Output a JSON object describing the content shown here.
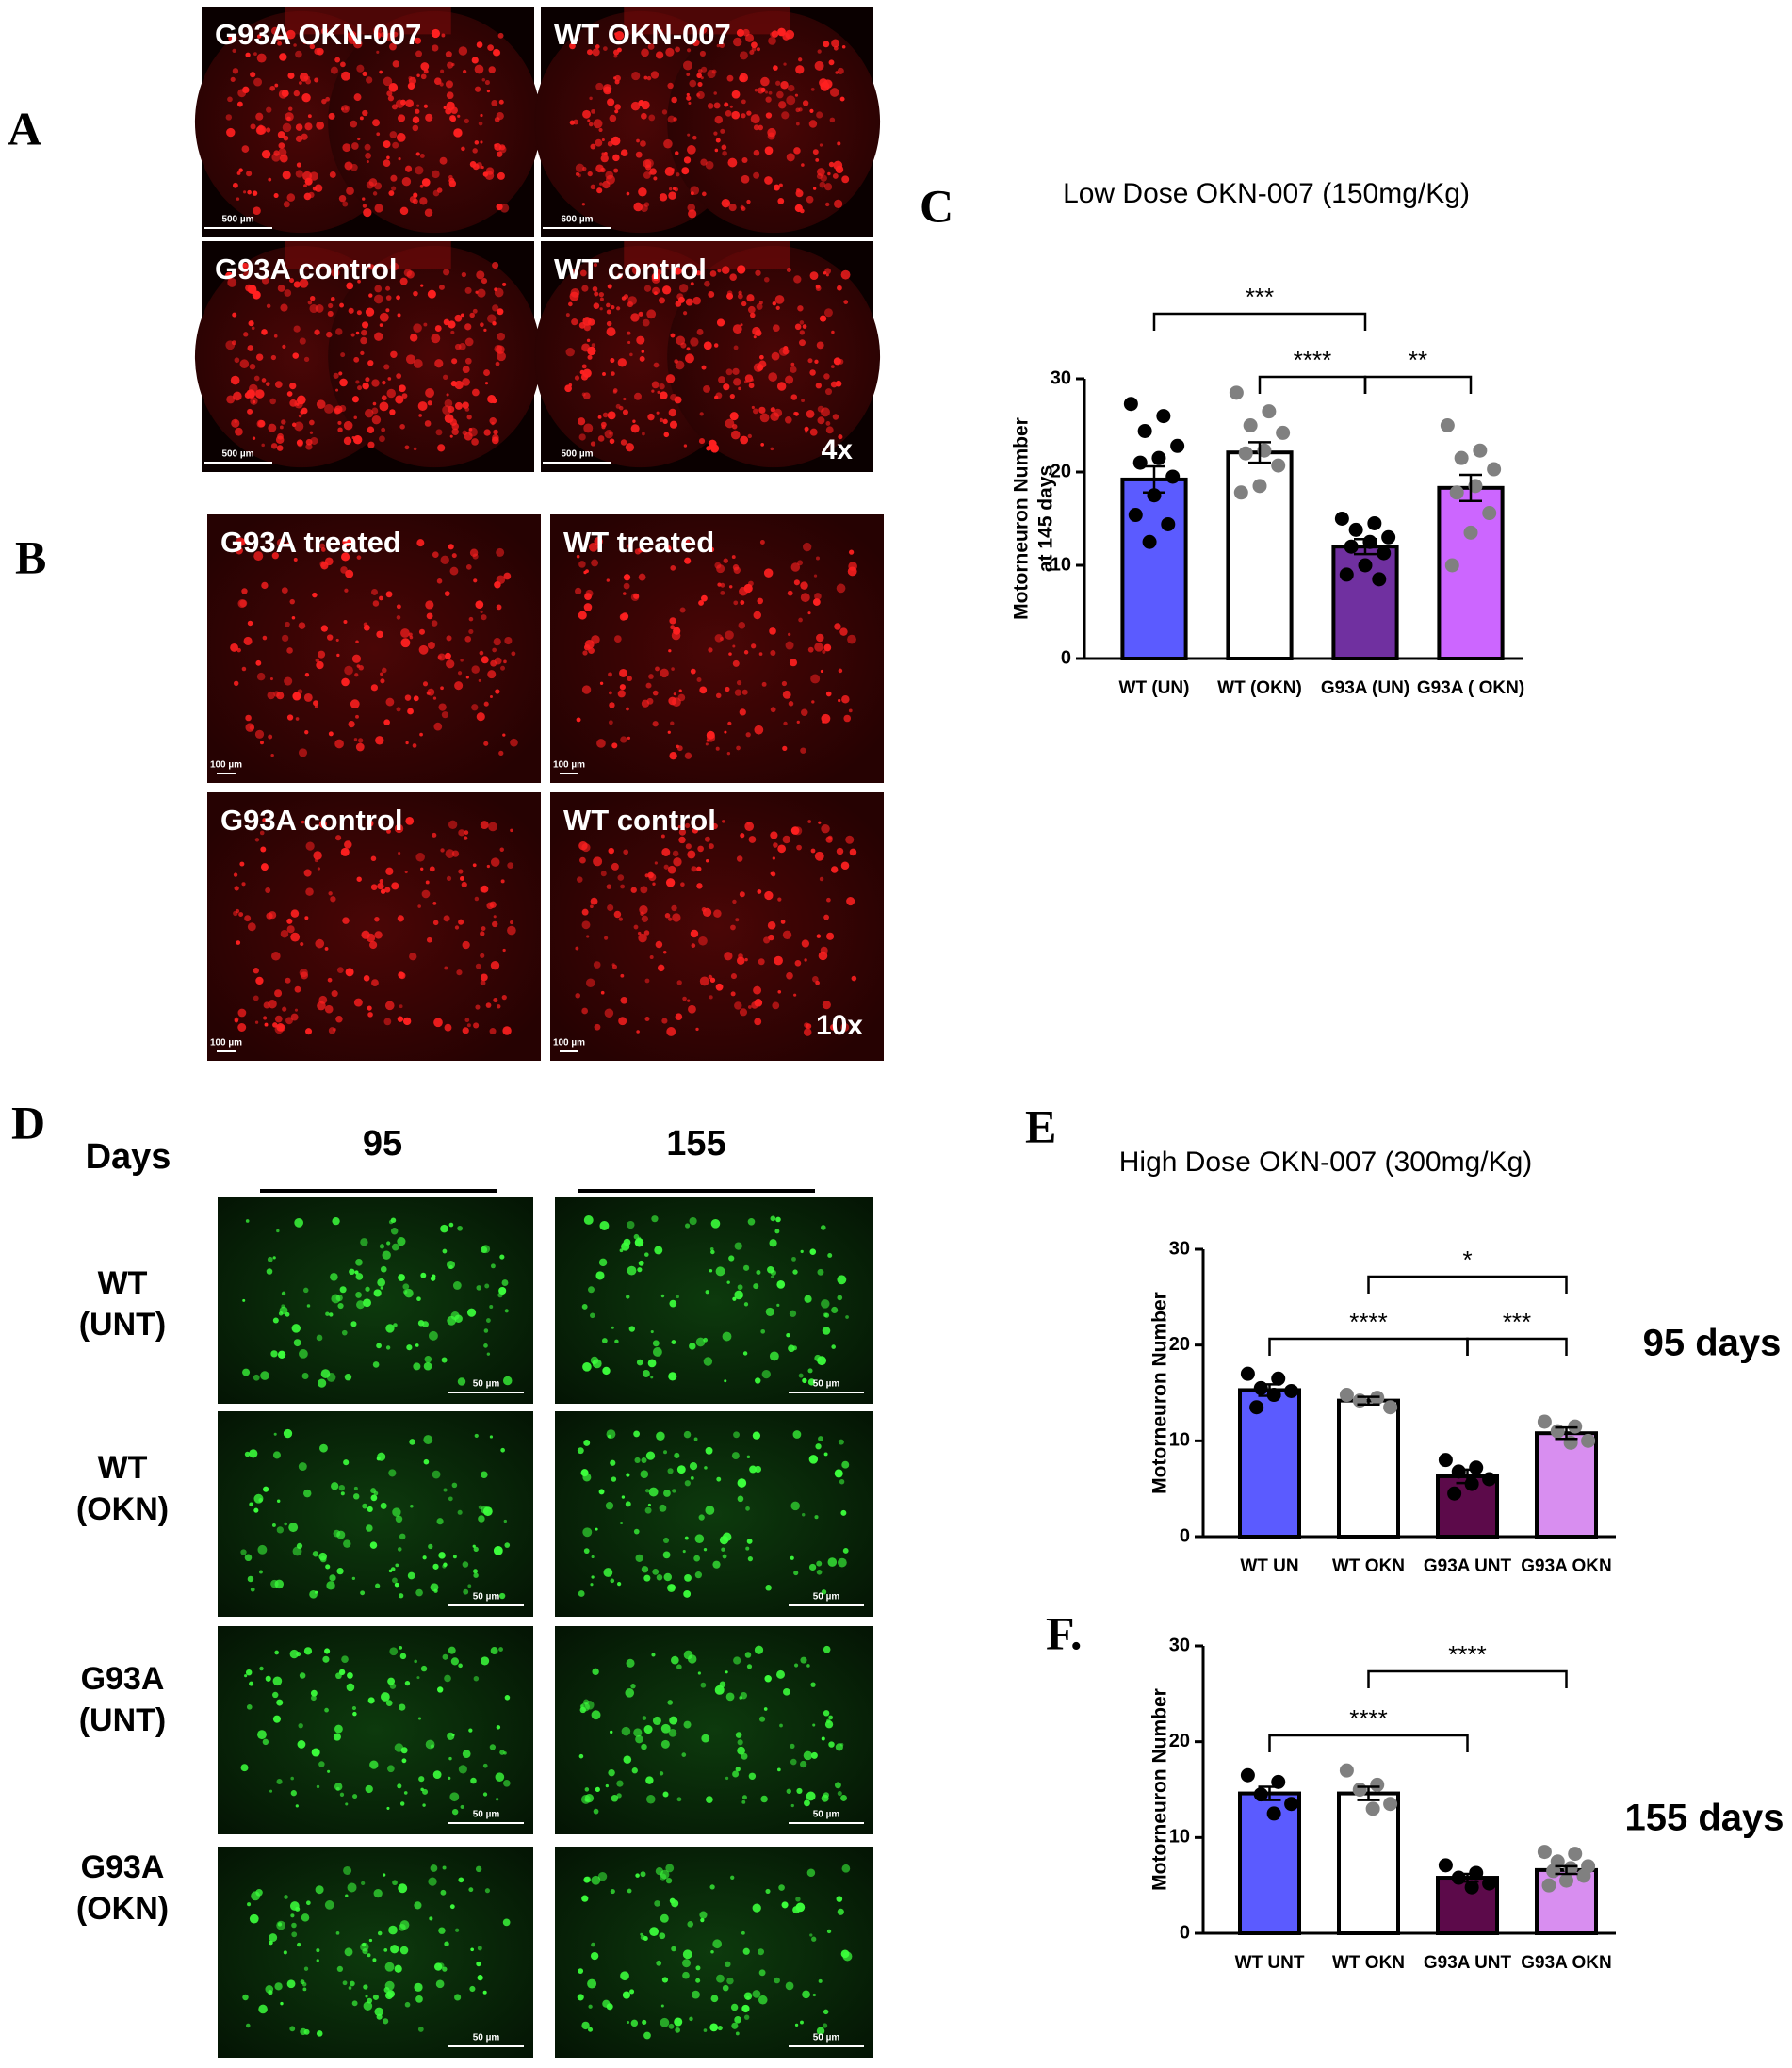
{
  "panel_a": {
    "letter": "A",
    "magnification": "4x",
    "images": [
      {
        "label": "G93A OKN-007",
        "scale": "500 µm"
      },
      {
        "label": "WT OKN-007",
        "scale": "600 µm"
      },
      {
        "label": "G93A control",
        "scale": "500 µm"
      },
      {
        "label": "WT control",
        "scale": "500 µm"
      }
    ]
  },
  "panel_b": {
    "letter": "B",
    "magnification": "10x",
    "images": [
      {
        "label": "G93A treated",
        "scale": "100 µm"
      },
      {
        "label": "WT treated",
        "scale": "100 µm"
      },
      {
        "label": "G93A control",
        "scale": "100 µm"
      },
      {
        "label": "WT control",
        "scale": "100 µm"
      }
    ]
  },
  "panel_d": {
    "letter": "D",
    "days_label": "Days",
    "columns": [
      "95",
      "155"
    ],
    "rows": [
      [
        "WT",
        "(UNT)"
      ],
      [
        "WT",
        "(OKN)"
      ],
      [
        "G93A",
        "(UNT)"
      ],
      [
        "G93A",
        "(OKN)"
      ]
    ],
    "scale": "50 µm"
  },
  "chart_data": [
    {
      "type": "bar",
      "letter": "C",
      "title": "Low  Dose OKN-007 (150mg/Kg)",
      "y_label": [
        "Motorneuron Number",
        "at 145 days"
      ],
      "categories": [
        "WT (UN)",
        "WT (OKN)",
        "G93A (UN)",
        "G93A ( OKN)"
      ],
      "values": [
        19.2,
        22.1,
        12.0,
        18.3
      ],
      "errors": [
        1.4,
        1.1,
        0.8,
        1.4
      ],
      "colors": [
        "#5b5bff",
        "#ffffff",
        "#7030a0",
        "#cc66ff"
      ],
      "point_colors": [
        "#000000",
        "#808080",
        "#000000",
        "#808080"
      ],
      "points": [
        [
          27.3,
          26,
          24.4,
          22.8,
          21.5,
          21,
          19.5,
          17.5,
          15.4,
          14.4,
          12.5
        ],
        [
          28.5,
          26.5,
          25,
          24.2,
          22.3,
          22,
          20.7,
          18.5,
          17.8
        ],
        [
          15,
          14.5,
          13.8,
          13,
          12.5,
          12,
          11.3,
          10,
          9,
          8.5
        ],
        [
          25,
          22.3,
          21.5,
          20.3,
          18.5,
          17.8,
          15.6,
          13.5,
          10
        ]
      ],
      "ylim": [
        0,
        30
      ],
      "yticks": [
        0,
        10,
        20,
        30
      ],
      "comparisons": [
        {
          "from": 0,
          "to": 2,
          "label": "***"
        },
        {
          "from": 1,
          "to": 2,
          "label": "****"
        },
        {
          "from": 2,
          "to": 3,
          "label": "**"
        }
      ]
    },
    {
      "type": "bar",
      "letter": "E",
      "title": "High Dose OKN-007 (300mg/Kg)",
      "annotation": "95 days",
      "y_label": [
        "Motorneuron Number"
      ],
      "categories": [
        "WT UN",
        "WT OKN",
        "G93A UNT",
        "G93A OKN"
      ],
      "values": [
        15.3,
        14.2,
        6.3,
        10.8
      ],
      "errors": [
        0.6,
        0.4,
        0.7,
        0.6
      ],
      "colors": [
        "#5b5bff",
        "#ffffff",
        "#5c0a4a",
        "#d88ef0"
      ],
      "point_colors": [
        "#000000",
        "#808080",
        "#000000",
        "#808080"
      ],
      "points": [
        [
          17,
          16.5,
          15.5,
          15.2,
          14.8,
          13.5
        ],
        [
          14.8,
          14.5,
          14.2,
          13.5
        ],
        [
          8,
          7.2,
          6.8,
          6,
          5.5,
          4.5
        ],
        [
          12,
          11.5,
          11,
          10,
          9.8
        ]
      ],
      "ylim": [
        0,
        30
      ],
      "yticks": [
        0,
        10,
        20,
        30
      ],
      "comparisons": [
        {
          "from": 1,
          "to": 3,
          "label": "*"
        },
        {
          "from": 0,
          "to": 2,
          "label": "****"
        },
        {
          "from": 2,
          "to": 3,
          "label": "***"
        }
      ]
    },
    {
      "type": "bar",
      "letter": "F.",
      "annotation": "155 days",
      "y_label": [
        "Motorneuron Number"
      ],
      "categories": [
        "WT UNT",
        "WT OKN",
        "G93A UNT",
        "G93A OKN"
      ],
      "values": [
        14.6,
        14.6,
        5.8,
        6.6
      ],
      "errors": [
        0.7,
        0.7,
        0.4,
        0.4
      ],
      "colors": [
        "#5b5bff",
        "#ffffff",
        "#5c0a4a",
        "#d88ef0"
      ],
      "point_colors": [
        "#000000",
        "#808080",
        "#000000",
        "#808080"
      ],
      "points": [
        [
          16.5,
          15.8,
          14.5,
          13.5,
          12.5
        ],
        [
          17,
          15.5,
          15,
          13.5,
          13
        ],
        [
          7.1,
          6.3,
          5.8,
          5.2,
          4.8
        ],
        [
          8.5,
          8.3,
          7.5,
          7,
          6.8,
          6.5,
          6,
          5.5,
          5
        ]
      ],
      "ylim": [
        0,
        30
      ],
      "yticks": [
        0,
        10,
        20,
        30
      ],
      "comparisons": [
        {
          "from": 1,
          "to": 3,
          "label": "****"
        },
        {
          "from": 0,
          "to": 2,
          "label": "****"
        }
      ]
    }
  ]
}
